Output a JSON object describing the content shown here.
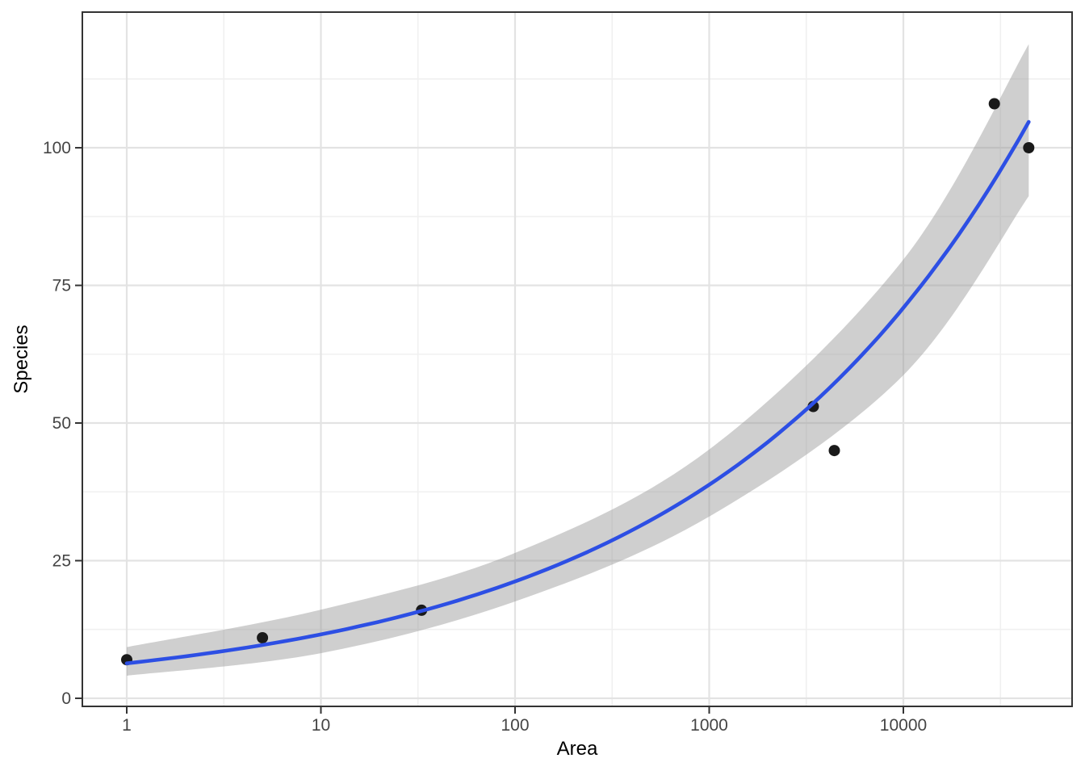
{
  "chart_data": {
    "type": "scatter",
    "title": "",
    "xlabel": "Area",
    "ylabel": "Species",
    "x_scale": "log10",
    "y_scale": "linear",
    "x_ticks": [
      {
        "value": 1,
        "label": "1"
      },
      {
        "value": 10,
        "label": "10"
      },
      {
        "value": 100,
        "label": "100"
      },
      {
        "value": 1000,
        "label": "1000"
      },
      {
        "value": 10000,
        "label": "10000"
      }
    ],
    "x_minor_log10": [
      0.5,
      1.5,
      2.5,
      3.5,
      4.5
    ],
    "y_ticks": [
      {
        "value": 0,
        "label": "0"
      },
      {
        "value": 25,
        "label": "25"
      },
      {
        "value": 50,
        "label": "50"
      },
      {
        "value": 75,
        "label": "75"
      },
      {
        "value": 100,
        "label": "100"
      }
    ],
    "y_minor_values": [
      12.5,
      37.5,
      62.5,
      87.5,
      112.5
    ],
    "xlim_log10": [
      -0.2287,
      4.869
    ],
    "ylim": [
      -1.47,
      124.64
    ],
    "grid": {
      "major": true,
      "minor": true
    },
    "legend_position": "none",
    "points": [
      {
        "area": 1,
        "species": 7
      },
      {
        "area": 5,
        "species": 11
      },
      {
        "area": 33,
        "species": 16
      },
      {
        "area": 3435,
        "species": 53
      },
      {
        "area": 4411,
        "species": 45
      },
      {
        "area": 29418,
        "species": 108
      },
      {
        "area": 44218,
        "species": 100
      }
    ],
    "smooth_fit": {
      "model": "power-law",
      "equation_c": 6.35,
      "equation_z": 0.262,
      "area_start": 1,
      "area_end": 44218
    },
    "confidence_band": {
      "log10_area": [
        0,
        1,
        2,
        3,
        4,
        4.6456
      ],
      "upper_species": [
        9.3,
        16.1,
        26.4,
        45.2,
        79.7,
        118.8
      ],
      "lower_species": [
        4.1,
        8.2,
        17.6,
        33.0,
        58.7,
        91.2
      ]
    }
  },
  "style": {
    "fit_line_color": "#2D4FE4",
    "ribbon_fill": "rgba(148,148,148,0.45)",
    "point_color": "#1A1A1A",
    "grid_major_color": "#E3E3E3",
    "grid_minor_color": "#F0F0F0",
    "panel_border_color": "#333333",
    "tick_mark_color": "#333333",
    "tick_label_color": "#454545",
    "axis_title_color": "#000000",
    "background_color": "#FFFFFF"
  }
}
